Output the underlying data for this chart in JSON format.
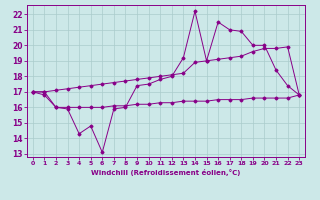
{
  "xlabel": "Windchill (Refroidissement éolien,°C)",
  "ylabel": "",
  "bg_color": "#cce8e8",
  "grid_color": "#aacccc",
  "line_color": "#880088",
  "xlim": [
    -0.5,
    23.5
  ],
  "ylim": [
    12.8,
    22.6
  ],
  "yticks": [
    13,
    14,
    15,
    16,
    17,
    18,
    19,
    20,
    21,
    22
  ],
  "xticks": [
    0,
    1,
    2,
    3,
    4,
    5,
    6,
    7,
    8,
    9,
    10,
    11,
    12,
    13,
    14,
    15,
    16,
    17,
    18,
    19,
    20,
    21,
    22,
    23
  ],
  "line1_x": [
    0,
    1,
    2,
    3,
    4,
    5,
    6,
    7,
    8,
    9,
    10,
    11,
    12,
    13,
    14,
    15,
    16,
    17,
    18,
    19,
    20,
    21,
    22,
    23
  ],
  "line1_y": [
    17.0,
    16.8,
    16.0,
    15.9,
    14.3,
    14.8,
    13.1,
    15.9,
    16.0,
    17.4,
    17.5,
    17.8,
    18.0,
    19.2,
    22.2,
    19.0,
    21.5,
    21.0,
    20.9,
    20.0,
    20.0,
    18.4,
    17.4,
    16.8
  ],
  "line2_x": [
    0,
    1,
    2,
    3,
    4,
    5,
    6,
    7,
    8,
    9,
    10,
    11,
    12,
    13,
    14,
    15,
    16,
    17,
    18,
    19,
    20,
    21,
    22,
    23
  ],
  "line2_y": [
    17.0,
    17.0,
    17.1,
    17.2,
    17.3,
    17.4,
    17.5,
    17.6,
    17.7,
    17.8,
    17.9,
    18.0,
    18.1,
    18.2,
    18.9,
    19.0,
    19.1,
    19.2,
    19.3,
    19.6,
    19.8,
    19.8,
    19.9,
    16.8
  ],
  "line3_x": [
    0,
    1,
    2,
    3,
    4,
    5,
    6,
    7,
    8,
    9,
    10,
    11,
    12,
    13,
    14,
    15,
    16,
    17,
    18,
    19,
    20,
    21,
    22,
    23
  ],
  "line3_y": [
    17.0,
    17.0,
    16.0,
    16.0,
    16.0,
    16.0,
    16.0,
    16.1,
    16.1,
    16.2,
    16.2,
    16.3,
    16.3,
    16.4,
    16.4,
    16.4,
    16.5,
    16.5,
    16.5,
    16.6,
    16.6,
    16.6,
    16.6,
    16.8
  ]
}
